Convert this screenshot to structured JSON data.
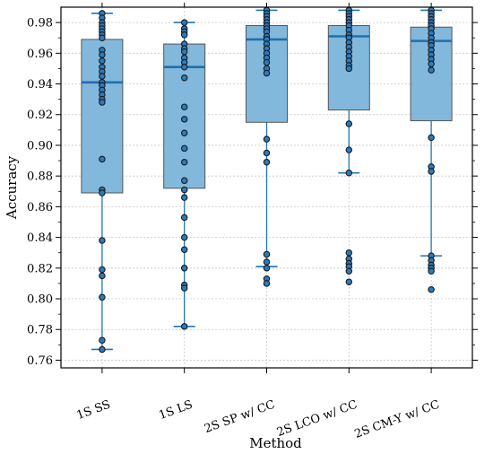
{
  "chart_data": {
    "type": "box",
    "xlabel": "Method",
    "ylabel": "Accuracy",
    "ylim": [
      0.755,
      0.99
    ],
    "yticks": [
      0.76,
      0.78,
      0.8,
      0.82,
      0.84,
      0.86,
      0.88,
      0.9,
      0.92,
      0.94,
      0.96,
      0.98
    ],
    "ytick_labels": [
      "0.76",
      "0.78",
      "0.80",
      "0.82",
      "0.84",
      "0.86",
      "0.88",
      "0.90",
      "0.92",
      "0.94",
      "0.96",
      "0.98"
    ],
    "grid": true,
    "colors": {
      "box_fill": "#82b8dc",
      "line": "#1f77b4",
      "point": "#2a7bbd"
    },
    "categories": [
      "1S SS",
      "1S LS",
      "2S SP w/ CC",
      "2S LCO w/ CC",
      "2S CM-Y w/ CC"
    ],
    "boxes": [
      {
        "label": "1S SS",
        "q1": 0.869,
        "median": 0.941,
        "q3": 0.969,
        "whisker_low": 0.767,
        "whisker_high": 0.986,
        "points": [
          0.986,
          0.983,
          0.98,
          0.978,
          0.976,
          0.974,
          0.972,
          0.97,
          0.962,
          0.959,
          0.955,
          0.951,
          0.948,
          0.945,
          0.941,
          0.939,
          0.936,
          0.933,
          0.93,
          0.928,
          0.891,
          0.871,
          0.869,
          0.838,
          0.819,
          0.815,
          0.801,
          0.773,
          0.767
        ]
      },
      {
        "label": "1S LS",
        "q1": 0.872,
        "median": 0.951,
        "q3": 0.966,
        "whisker_low": 0.782,
        "whisker_high": 0.98,
        "points": [
          0.98,
          0.976,
          0.974,
          0.972,
          0.966,
          0.963,
          0.961,
          0.957,
          0.954,
          0.951,
          0.944,
          0.925,
          0.917,
          0.908,
          0.898,
          0.889,
          0.877,
          0.871,
          0.866,
          0.853,
          0.84,
          0.832,
          0.82,
          0.809,
          0.807,
          0.782
        ]
      },
      {
        "label": "2S SP w/ CC",
        "q1": 0.915,
        "median": 0.969,
        "q3": 0.978,
        "whisker_low": 0.821,
        "whisker_high": 0.988,
        "points": [
          0.988,
          0.986,
          0.984,
          0.982,
          0.98,
          0.978,
          0.976,
          0.974,
          0.971,
          0.969,
          0.966,
          0.963,
          0.96,
          0.957,
          0.954,
          0.95,
          0.947,
          0.904,
          0.895,
          0.889,
          0.829,
          0.824,
          0.82,
          0.813,
          0.81
        ]
      },
      {
        "label": "2S LCO w/ CC",
        "q1": 0.923,
        "median": 0.971,
        "q3": 0.978,
        "whisker_low": 0.882,
        "whisker_high": 0.988,
        "points": [
          0.988,
          0.986,
          0.984,
          0.982,
          0.98,
          0.978,
          0.975,
          0.972,
          0.97,
          0.967,
          0.964,
          0.961,
          0.958,
          0.955,
          0.952,
          0.95,
          0.914,
          0.897,
          0.882,
          0.83,
          0.826,
          0.823,
          0.821,
          0.818,
          0.811
        ]
      },
      {
        "label": "2S CM-Y w/ CC",
        "q1": 0.916,
        "median": 0.968,
        "q3": 0.977,
        "whisker_low": 0.828,
        "whisker_high": 0.988,
        "points": [
          0.988,
          0.986,
          0.984,
          0.982,
          0.98,
          0.978,
          0.976,
          0.973,
          0.97,
          0.967,
          0.965,
          0.962,
          0.959,
          0.956,
          0.953,
          0.949,
          0.905,
          0.886,
          0.883,
          0.828,
          0.825,
          0.822,
          0.82,
          0.818,
          0.806
        ]
      }
    ]
  }
}
